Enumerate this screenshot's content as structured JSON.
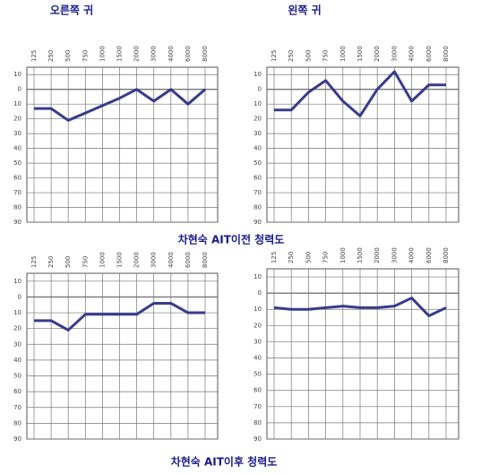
{
  "column_headings": [
    "오른쪽 귀",
    "왼쪽 귀"
  ],
  "row_captions": [
    "차현숙 AIT이전 청력도",
    "차현숙 AIT이후 청력도"
  ],
  "chart_data": [
    {
      "type": "line",
      "categories": [
        "125",
        "250",
        "500",
        "750",
        "1000",
        "1500",
        "2000",
        "3000",
        "4000",
        "6000",
        "8000"
      ],
      "values": [
        13,
        13,
        21,
        16,
        11,
        6,
        0,
        8,
        0,
        10,
        0
      ],
      "color": "#3a3a8c",
      "ylim": [
        -15,
        90
      ],
      "y_inverted": true,
      "grid": true,
      "yticks": [
        {
          "value": -10,
          "label": "10"
        },
        0,
        10,
        20,
        30,
        40,
        50,
        60,
        70,
        80,
        90
      ]
    },
    {
      "type": "line",
      "categories": [
        "125",
        "250",
        "500",
        "750",
        "1000",
        "1500",
        "2000",
        "3000",
        "4000",
        "6000",
        "8000"
      ],
      "values": [
        14,
        14,
        2,
        -6,
        8,
        18,
        0,
        -12,
        8,
        -3,
        -3
      ],
      "color": "#3a3a8c",
      "ylim": [
        -15,
        90
      ],
      "y_inverted": true,
      "grid": true,
      "yticks": [
        {
          "value": -10,
          "label": "10"
        },
        0,
        10,
        20,
        30,
        40,
        50,
        60,
        70,
        80,
        90
      ]
    },
    {
      "type": "line",
      "categories": [
        "125",
        "250",
        "500",
        "750",
        "1000",
        "1500",
        "2000",
        "3000",
        "4000",
        "6000",
        "8000"
      ],
      "values": [
        15,
        15,
        21,
        11,
        11,
        11,
        11,
        4,
        4,
        10,
        10
      ],
      "color": "#3a3a8c",
      "ylim": [
        -15,
        90
      ],
      "y_inverted": true,
      "grid": true,
      "yticks": [
        {
          "value": -10,
          "label": "10"
        },
        0,
        10,
        20,
        30,
        40,
        50,
        60,
        70,
        80,
        90
      ]
    },
    {
      "type": "line",
      "categories": [
        "125",
        "250",
        "500",
        "750",
        "1000",
        "1500",
        "2000",
        "3000",
        "4000",
        "6000",
        "8000"
      ],
      "values": [
        9,
        10,
        10,
        9,
        8,
        9,
        9,
        8,
        3,
        14,
        9
      ],
      "color": "#3a3a8c",
      "ylim": [
        -15,
        90
      ],
      "y_inverted": true,
      "grid": true,
      "yticks": [
        {
          "value": -10,
          "label": "10"
        },
        0,
        10,
        20,
        30,
        40,
        50,
        60,
        70,
        80,
        90
      ]
    }
  ]
}
